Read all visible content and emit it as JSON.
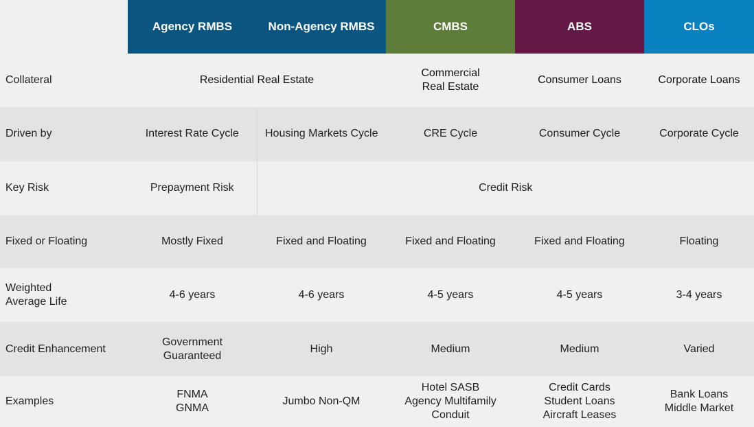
{
  "header": {
    "corner": "",
    "columns": [
      {
        "label": "Agency RMBS",
        "color": "#0b5680"
      },
      {
        "label": "Non-Agency RMBS",
        "color": "#0b5680"
      },
      {
        "label": "CMBS",
        "color": "#5e7c3a"
      },
      {
        "label": "ABS",
        "color": "#641845"
      },
      {
        "label": "CLOs",
        "color": "#0a82c2"
      }
    ]
  },
  "rows": {
    "collateral": {
      "label": "Collateral",
      "residential": "Residential Real Estate",
      "cmbs": [
        "Commercial",
        "Real Estate"
      ],
      "abs": "Consumer Loans",
      "clos": "Corporate Loans"
    },
    "driven_by": {
      "label": "Driven by",
      "agency": "Interest Rate Cycle",
      "non_agency": "Housing Markets Cycle",
      "cmbs": "CRE Cycle",
      "abs": "Consumer Cycle",
      "clos": "Corporate Cycle"
    },
    "key_risk": {
      "label": "Key Risk",
      "agency": "Prepayment Risk",
      "others": "Credit Risk"
    },
    "fixed_floating": {
      "label": "Fixed or Floating",
      "agency": "Mostly Fixed",
      "non_agency": "Fixed and Floating",
      "cmbs": "Fixed and Floating",
      "abs": "Fixed and Floating",
      "clos": "Floating"
    },
    "wal": {
      "label": [
        "Weighted",
        "Average Life"
      ],
      "agency": "4-6 years",
      "non_agency": "4-6 years",
      "cmbs": "4-5 years",
      "abs": "4-5 years",
      "clos": "3-4 years"
    },
    "credit_enhancement": {
      "label": "Credit Enhancement",
      "agency": "Government Guaranteed",
      "non_agency": "High",
      "cmbs": "Medium",
      "abs": "Medium",
      "clos": "Varied"
    },
    "examples": {
      "label": "Examples",
      "agency": [
        "FNMA",
        "GNMA"
      ],
      "non_agency": "Jumbo Non-QM",
      "cmbs": [
        "Hotel SASB",
        "Agency Multifamily",
        "Conduit"
      ],
      "abs": [
        "Credit Cards",
        "Student Loans",
        "Aircraft Leases"
      ],
      "clos": [
        "Bank Loans",
        "Middle Market"
      ]
    }
  }
}
